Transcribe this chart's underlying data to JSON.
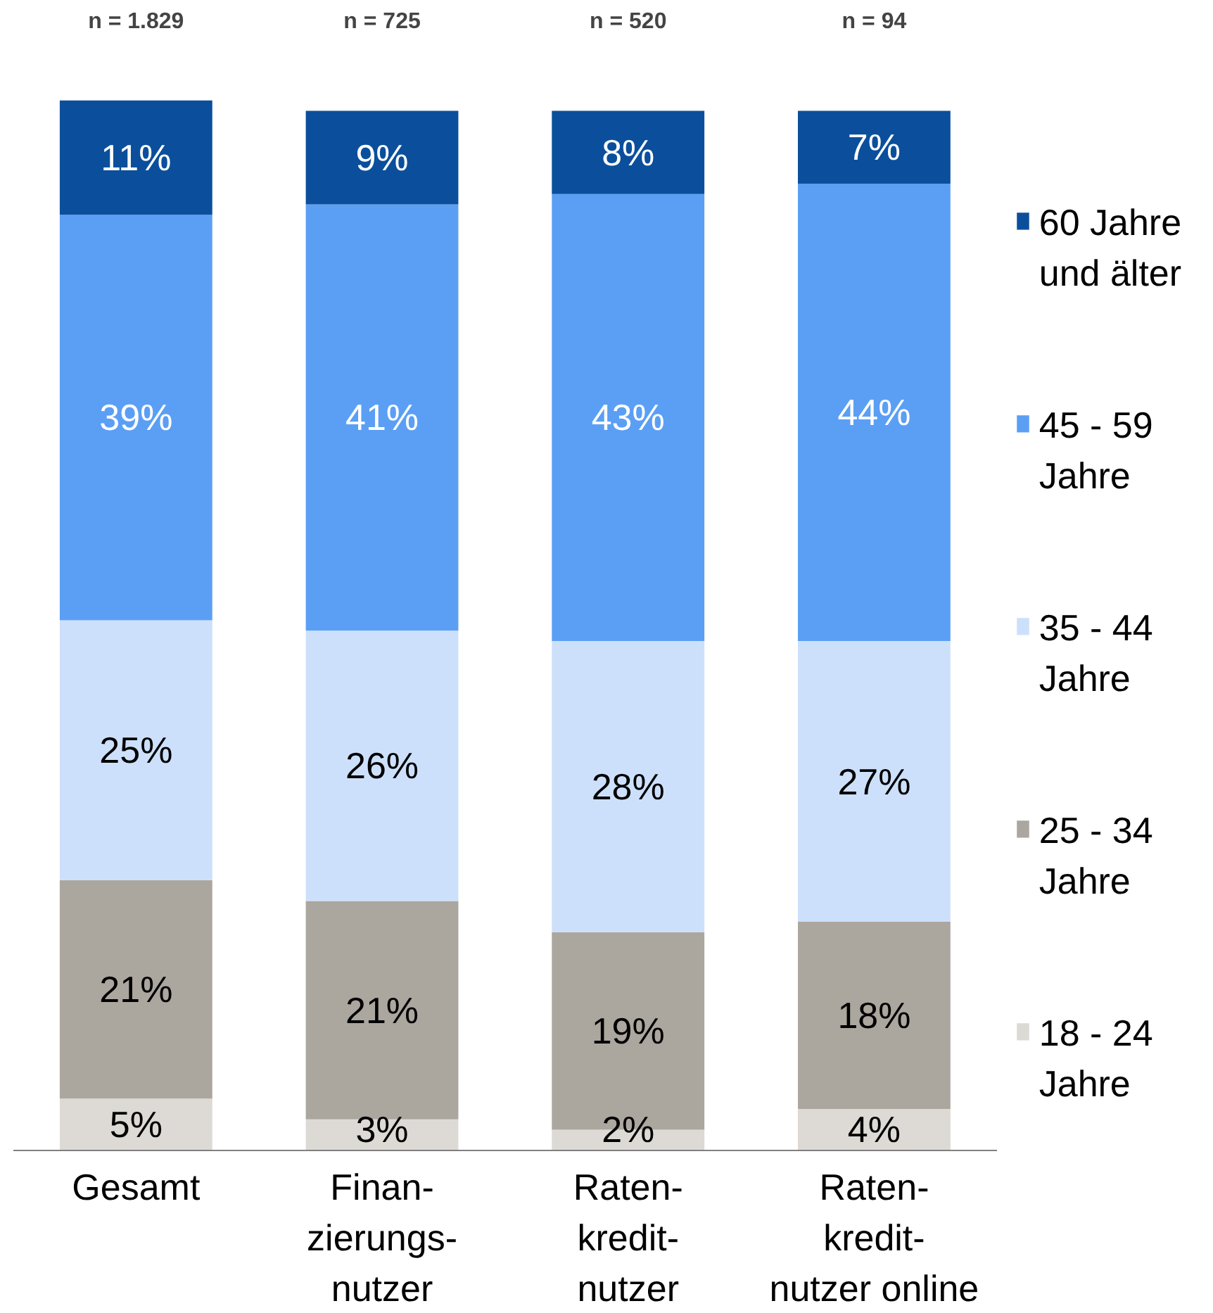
{
  "chart_data": {
    "type": "bar",
    "stacked": true,
    "categories": [
      "Gesamt",
      "Finan-\nzierungs-\nnutzer",
      "Raten-\nkredit-\nnutzer",
      "Raten-\nkredit-\nnutzer online"
    ],
    "series": [
      {
        "name": "18 - 24 Jahre",
        "color": "#ddd9d5",
        "values": [
          5,
          3,
          2,
          4
        ],
        "value_labels": [
          "5%",
          "3%",
          "2%",
          "4%"
        ]
      },
      {
        "name": "25 - 34 Jahre",
        "color": "#aba69e",
        "values": [
          21,
          21,
          19,
          18
        ],
        "value_labels": [
          "21%",
          "21%",
          "19%",
          "18%"
        ]
      },
      {
        "name": "35 - 44 Jahre",
        "color": "#cde0fb",
        "values": [
          25,
          26,
          28,
          27
        ],
        "value_labels": [
          "25%",
          "26%",
          "28%",
          "27%"
        ]
      },
      {
        "name": "45 - 59 Jahre",
        "color": "#5b9ff5",
        "values": [
          39,
          41,
          43,
          44
        ],
        "value_labels": [
          "39%",
          "41%",
          "43%",
          "44%"
        ]
      },
      {
        "name": "60 Jahre und älter",
        "color": "#0b4f9c",
        "values": [
          11,
          9,
          8,
          7
        ],
        "value_labels": [
          "11%",
          "9%",
          "8%",
          "7%"
        ]
      }
    ],
    "annotations": [
      "n = 1.829",
      "n = 725",
      "n = 520",
      "n = 94"
    ],
    "legend": "right",
    "grid": false
  }
}
